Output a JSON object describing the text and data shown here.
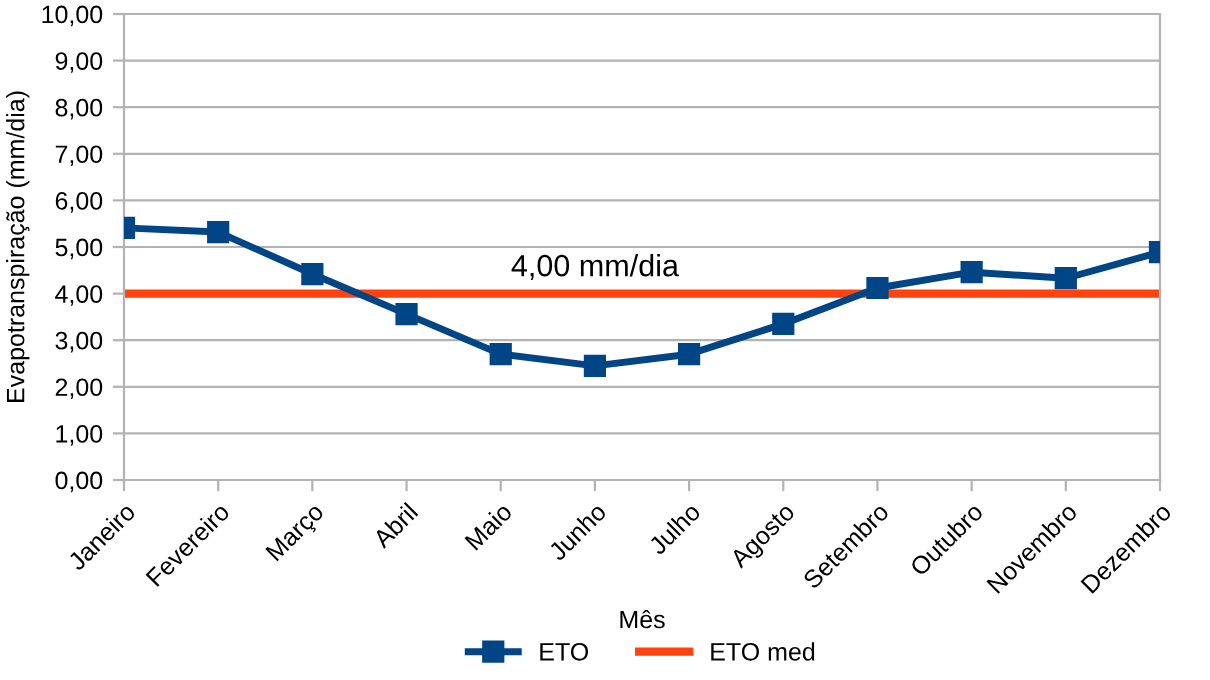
{
  "chart_data": {
    "type": "line",
    "xlabel": "Mês",
    "ylabel": "Evapotranspiração (mm/dia)",
    "categories": [
      "Janeiro",
      "Fevereiro",
      "Março",
      "Abril",
      "Maio",
      "Junho",
      "Julho",
      "Agosto",
      "Setembro",
      "Outubro",
      "Novembro",
      "Dezembro"
    ],
    "series": [
      {
        "name": "ETO",
        "color": "#004586",
        "marker": "square",
        "values": [
          5.41,
          5.32,
          4.42,
          3.56,
          2.7,
          2.45,
          2.7,
          3.35,
          4.12,
          4.46,
          4.33,
          4.89
        ]
      },
      {
        "name": "ETO med",
        "color": "#ff420e",
        "marker": "none",
        "values": [
          4,
          4,
          4,
          4,
          4,
          4,
          4,
          4,
          4,
          4,
          4,
          4
        ]
      }
    ],
    "annotations": [
      {
        "text": "4,00 mm/dia",
        "x": "Junho",
        "y": 4
      }
    ],
    "ylim": [
      0,
      10
    ],
    "yticks": [
      {
        "value": 0,
        "label": "0,00"
      },
      {
        "value": 1,
        "label": "1,00"
      },
      {
        "value": 2,
        "label": "2,00"
      },
      {
        "value": 3,
        "label": "3,00"
      },
      {
        "value": 4,
        "label": "4,00"
      },
      {
        "value": 5,
        "label": "5,00"
      },
      {
        "value": 6,
        "label": "6,00"
      },
      {
        "value": 7,
        "label": "7,00"
      },
      {
        "value": 8,
        "label": "8,00"
      },
      {
        "value": 9,
        "label": "9,00"
      },
      {
        "value": 10,
        "label": "10,00"
      }
    ],
    "grid": "y",
    "legend": "bottom",
    "line_style": "solid"
  }
}
